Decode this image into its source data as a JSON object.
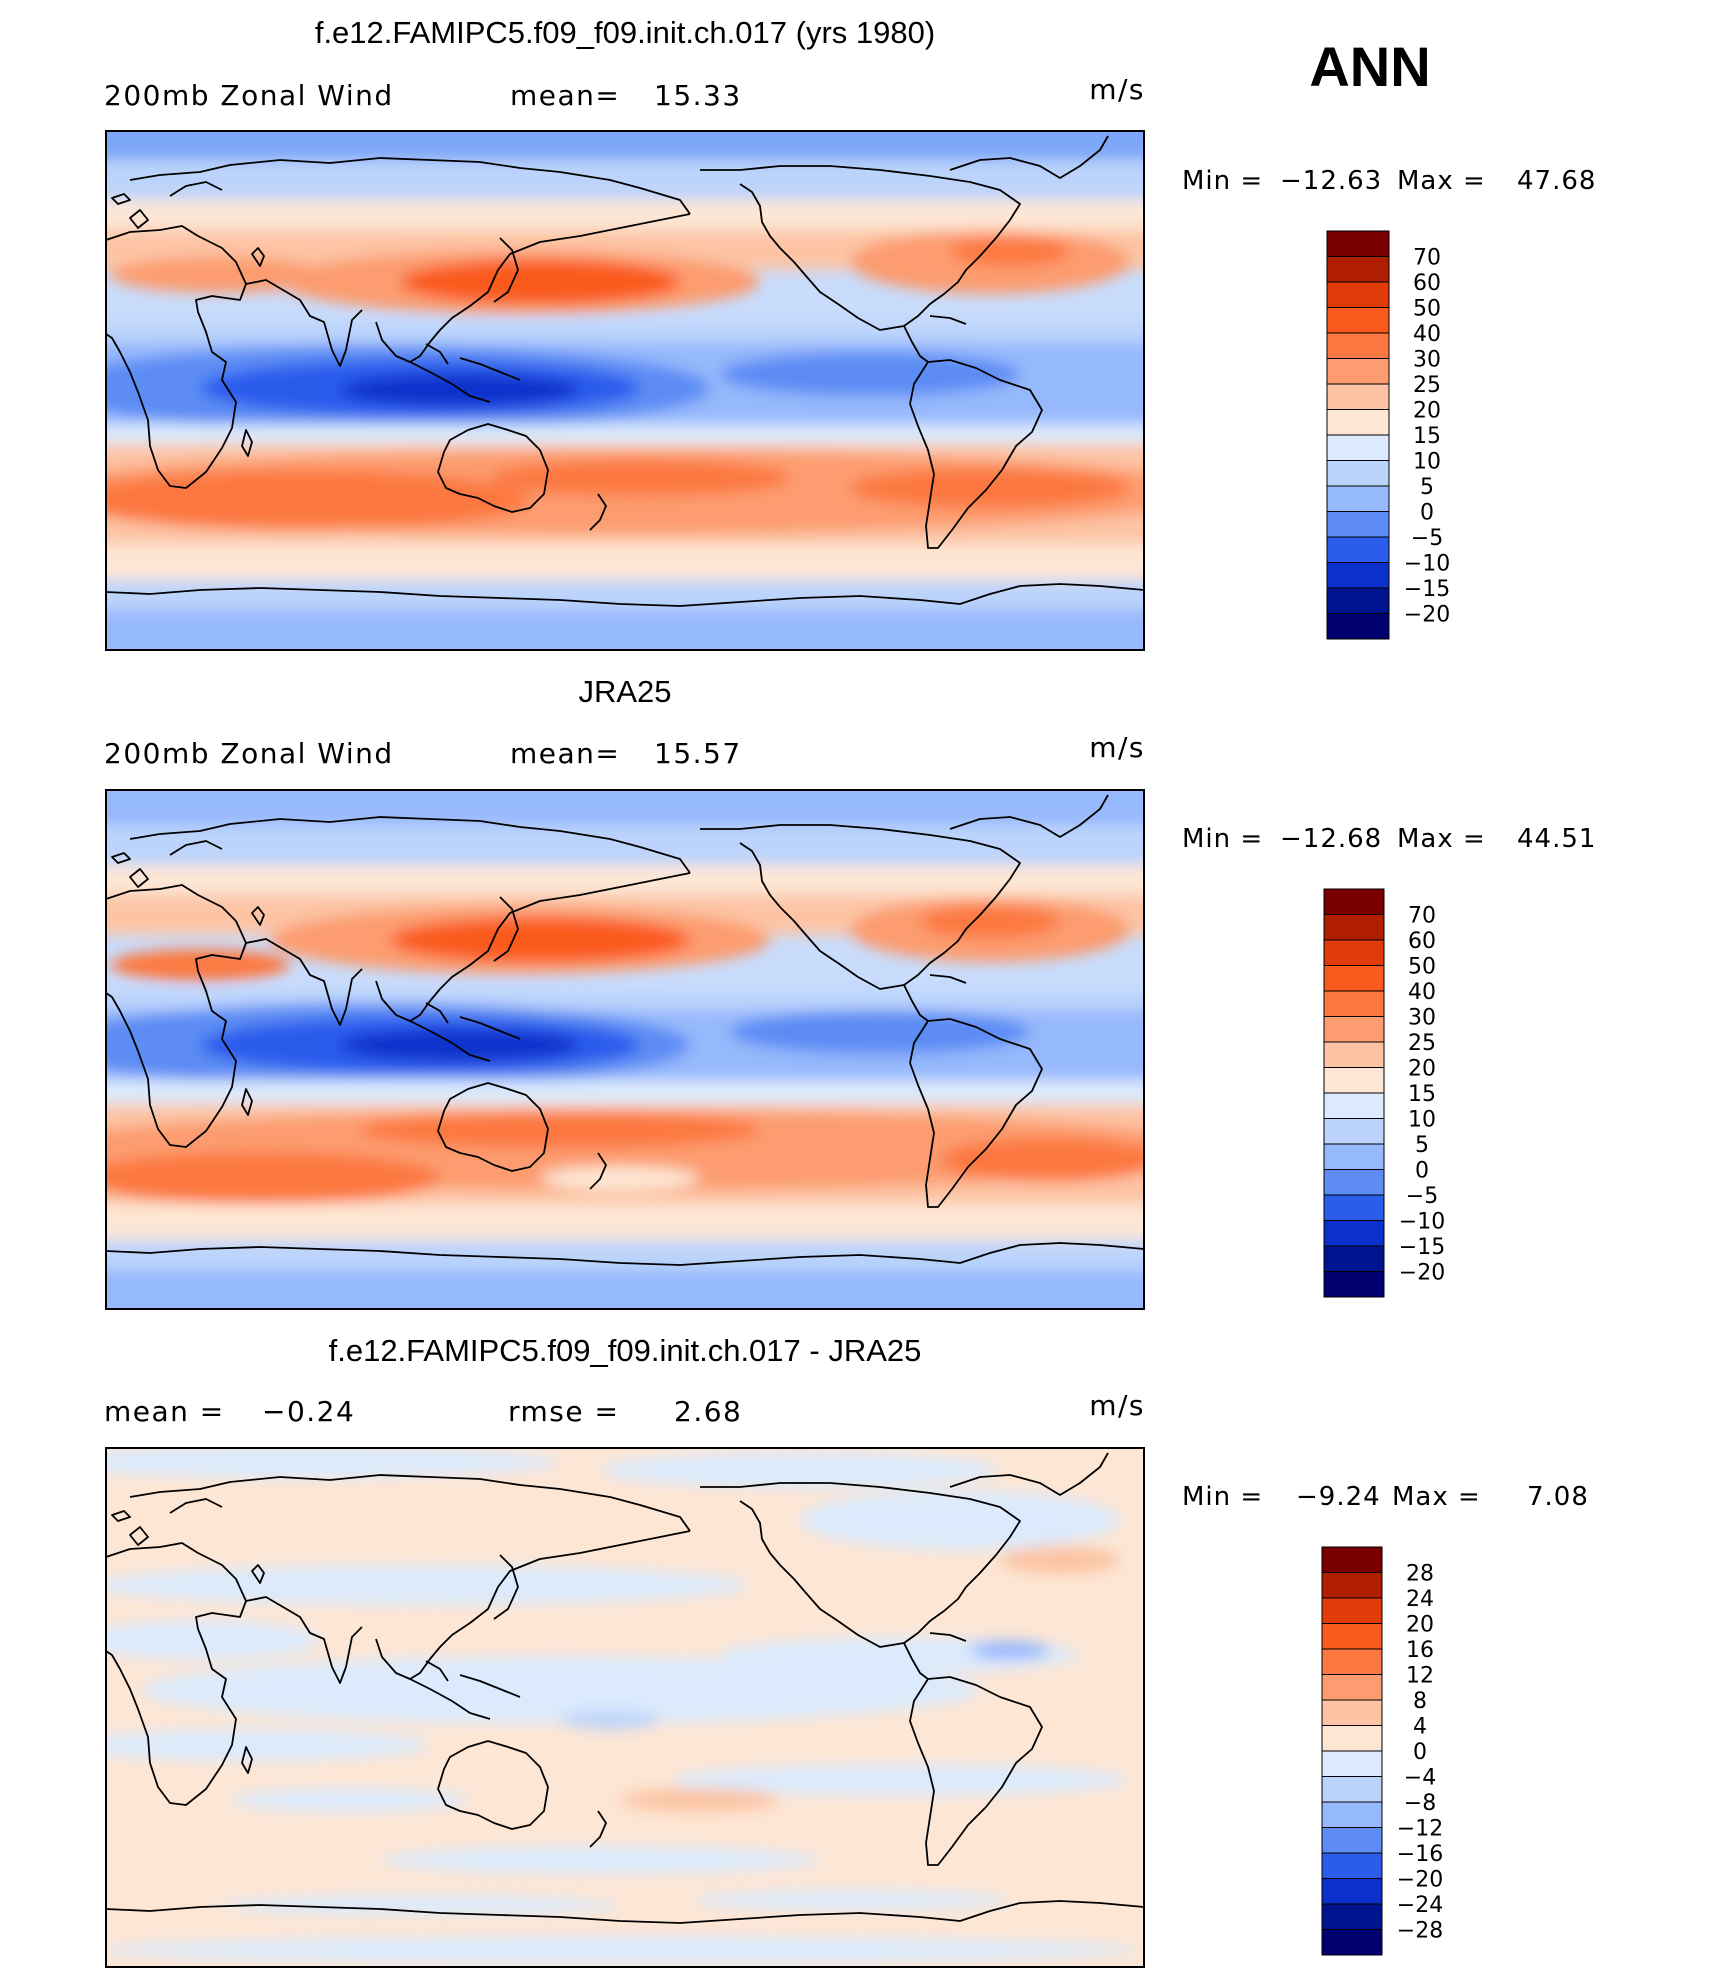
{
  "figure": {
    "season": "ANN",
    "panels": [
      {
        "id": "model",
        "title": "f.e12.FAMIPC5.f09_f09.init.ch.017 (yrs 1980)",
        "variable": "200mb Zonal Wind",
        "stat1_label": "mean=",
        "stat1_value": "15.33",
        "stat2_label": "",
        "stat2_value": "",
        "units": "m/s",
        "min_label": "Min =",
        "min_value": "−12.63",
        "max_label": "Max =",
        "max_value": "47.68",
        "colorbar": [
          "70",
          "60",
          "50",
          "40",
          "30",
          "25",
          "20",
          "15",
          "10",
          "5",
          "0",
          "−5",
          "−10",
          "−15",
          "−20"
        ]
      },
      {
        "id": "obs",
        "title": "JRA25",
        "variable": "200mb Zonal Wind",
        "stat1_label": "mean=",
        "stat1_value": "15.57",
        "stat2_label": "",
        "stat2_value": "",
        "units": "m/s",
        "min_label": "Min =",
        "min_value": "−12.68",
        "max_label": "Max =",
        "max_value": "44.51",
        "colorbar": [
          "70",
          "60",
          "50",
          "40",
          "30",
          "25",
          "20",
          "15",
          "10",
          "5",
          "0",
          "−5",
          "−10",
          "−15",
          "−20"
        ]
      },
      {
        "id": "diff",
        "title": "f.e12.FAMIPC5.f09_f09.init.ch.017 - JRA25",
        "variable": "",
        "stat1_label": "mean =",
        "stat1_value": "−0.24",
        "stat2_label": "rmse =",
        "stat2_value": "2.68",
        "units": "m/s",
        "min_label": "Min =",
        "min_value": "−9.24",
        "max_label": "Max =",
        "max_value": "7.08",
        "colorbar": [
          "28",
          "24",
          "20",
          "16",
          "12",
          "8",
          "4",
          "0",
          "−4",
          "−8",
          "−12",
          "−16",
          "−20",
          "−24",
          "−28"
        ]
      }
    ],
    "colors": {
      "scale": [
        "#7a0000",
        "#b01e00",
        "#e03c0a",
        "#fa5a1e",
        "#fc7840",
        "#fc9c70",
        "#fcc4a4",
        "#fde6d4",
        "#dbeafc",
        "#bcd4fc",
        "#96b8fc",
        "#5c8cf4",
        "#2c5cec",
        "#0c30cc",
        "#001490",
        "#000070"
      ],
      "coast": "#000000"
    }
  }
}
